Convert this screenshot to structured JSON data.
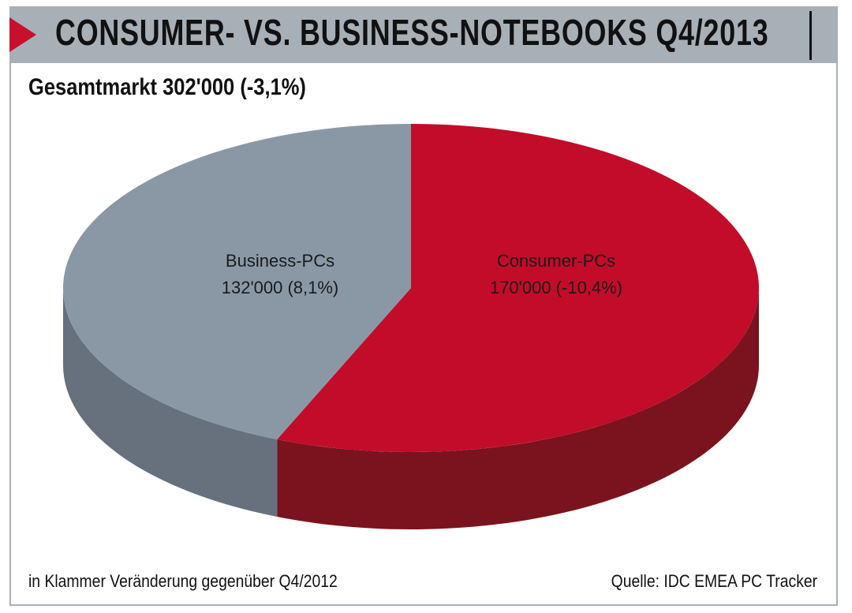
{
  "header": {
    "title": "CONSUMER- VS. BUSINESS-NOTEBOOKS Q4/2013",
    "subtitle": "Gesamtmarkt 302'000 (-3,1%)"
  },
  "footer": {
    "note": "in Klammer Veränderung gegenüber Q4/2012",
    "source": "Quelle: IDC EMEA PC Tracker"
  },
  "colors": {
    "accent": "#c8102e",
    "frame": "#a7b0b6",
    "consumer_top": "#c20c2a",
    "consumer_side": "#7a131d",
    "business_top": "#8a98a6",
    "business_side": "#66717d"
  },
  "chart_data": {
    "type": "pie",
    "title": "Gesamtmarkt 302'000 (-3,1%)",
    "total": 302000,
    "slices": [
      {
        "name": "Consumer-PCs",
        "value": 170000,
        "change_label": "170'000 (-10,4%)"
      },
      {
        "name": "Business-PCs",
        "value": 132000,
        "change_label": "132'000 (8,1%)"
      }
    ]
  }
}
